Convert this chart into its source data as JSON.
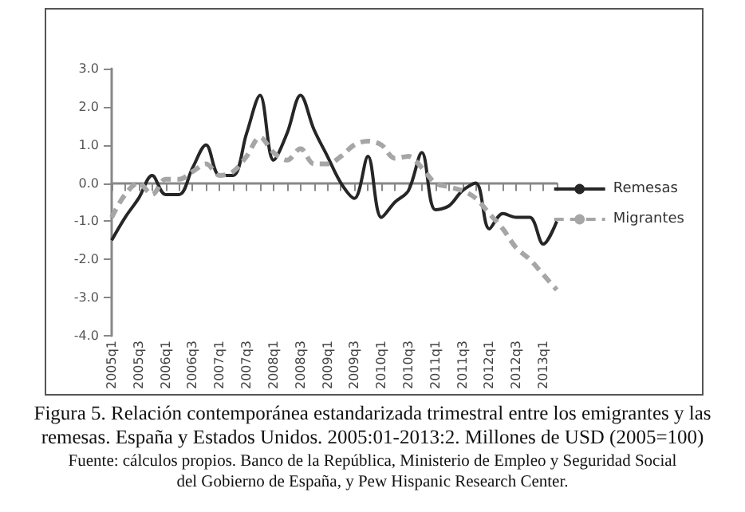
{
  "chart_data": {
    "type": "line",
    "title": "Figura 5. Relación contemporánea estandarizada trimestral entre los emigrantes y las remesas. España y Estados Unidos. 2005:01-2013:2. Millones de USD (2005=100)",
    "annotations": [
      "Fuente: cálculos propios. Banco de la República, Ministerio de Empleo y Seguridad Social del Gobierno de España, y Pew Hispanic Research Center."
    ],
    "categories": [
      "2005q1",
      null,
      "2005q3",
      null,
      "2006q1",
      null,
      "2006q3",
      null,
      "2007q1",
      null,
      "2007q3",
      null,
      "2008q1",
      null,
      "2008q3",
      null,
      "2009q1",
      null,
      "2009q3",
      null,
      "2010q1",
      null,
      "2010q3",
      null,
      "2011q1",
      null,
      "2011q3",
      null,
      "2012q1",
      null,
      "2012q3",
      null,
      "2013q1",
      null
    ],
    "series": [
      {
        "name": "Remesas",
        "color": "#262626",
        "line_style": "solid",
        "values": [
          -1.5,
          -0.9,
          -0.4,
          0.2,
          -0.3,
          -0.3,
          0.4,
          1.0,
          0.2,
          0.2,
          1.3,
          2.3,
          0.6,
          1.3,
          2.3,
          1.4,
          0.7,
          0.0,
          -0.4,
          0.7,
          -0.9,
          -0.5,
          -0.2,
          0.8,
          -0.7,
          -0.6,
          -0.2,
          0.0,
          -1.2,
          -0.8,
          -0.9,
          -0.9,
          -1.6,
          -1.0
        ]
      },
      {
        "name": "Migrantes",
        "color": "#a6a6a6",
        "line_style": "dashed",
        "values": [
          -0.9,
          -0.3,
          0.0,
          -0.3,
          0.1,
          0.1,
          0.3,
          0.5,
          0.2,
          0.3,
          0.7,
          1.2,
          0.8,
          0.6,
          0.9,
          0.5,
          0.5,
          0.7,
          1.0,
          1.1,
          1.0,
          0.65,
          0.7,
          0.4,
          0.0,
          -0.1,
          -0.2,
          -0.4,
          -0.8,
          -1.2,
          -1.7,
          -2.0,
          -2.4,
          -2.8
        ]
      }
    ],
    "ylim": [
      -4,
      3
    ],
    "yticks": [
      {
        "value": -4,
        "label": "-4.0"
      },
      {
        "value": -3,
        "label": "-3.0"
      },
      {
        "value": -2,
        "label": "-2.0"
      },
      {
        "value": -1,
        "label": "-1.0"
      },
      {
        "value": 0,
        "label": "0.0"
      },
      {
        "value": 1,
        "label": "1.0"
      },
      {
        "value": 2,
        "label": "2.0"
      },
      {
        "value": 3,
        "label": "3.0"
      }
    ],
    "legend": "right",
    "marker": "none"
  }
}
